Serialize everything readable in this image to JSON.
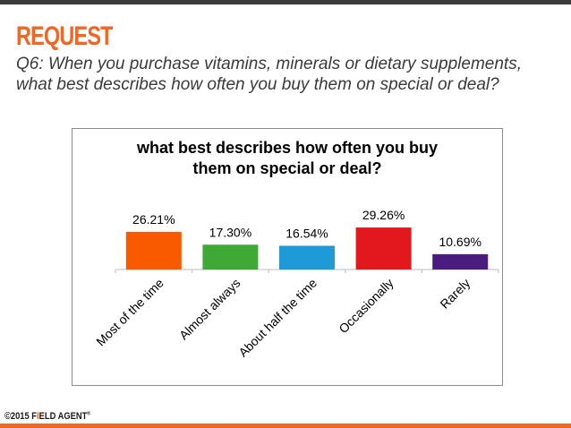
{
  "slide": {
    "heading": "REQUEST",
    "question": "Q6: When you purchase vitamins, minerals or dietary supplements, what best describes how often you buy them on special or deal?"
  },
  "footer": {
    "copyright": "©2015",
    "brand_part1": "F",
    "brand_part2": "I",
    "brand_part3": "ELD AGENT",
    "trademark": "®"
  },
  "chart_data": {
    "type": "bar",
    "title_lines": [
      "what best describes how often you buy",
      "them on special or deal?"
    ],
    "categories": [
      "Most of the time",
      "Almost always",
      "About half the time",
      "Occasionally",
      "Rarely"
    ],
    "values": [
      26.21,
      17.3,
      16.54,
      29.26,
      10.69
    ],
    "value_labels": [
      "26.21%",
      "17.30%",
      "16.54%",
      "29.26%",
      "10.69%"
    ],
    "colors": [
      "#f95a00",
      "#3eaa35",
      "#1f9ad9",
      "#e3181c",
      "#4a1c80"
    ],
    "ylim": [
      0,
      35
    ],
    "grid": false,
    "legend": "none"
  },
  "colors": {
    "accent": "#f26522",
    "text": "#3a3a3a"
  }
}
